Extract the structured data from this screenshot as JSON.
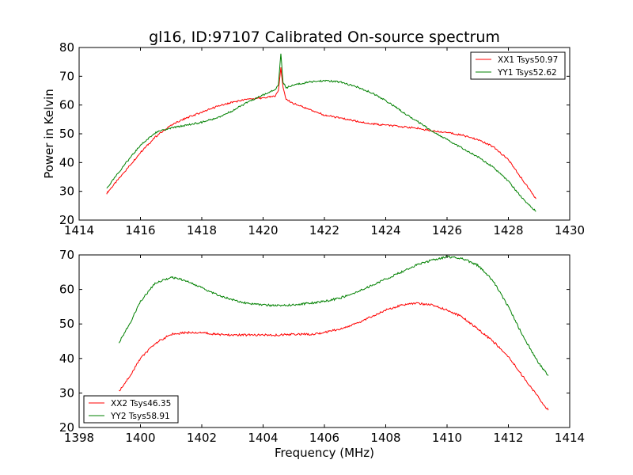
{
  "chart_data": [
    {
      "type": "line",
      "title": "gl16, ID:97107 Calibrated On-source spectrum",
      "xlabel": "",
      "ylabel": "Power in Kelvin",
      "xlim": [
        1414,
        1430
      ],
      "ylim": [
        20,
        80
      ],
      "xticks": [
        "1414",
        "1416",
        "1418",
        "1420",
        "1422",
        "1424",
        "1426",
        "1428",
        "1430"
      ],
      "yticks": [
        "20",
        "30",
        "40",
        "50",
        "60",
        "70",
        "80"
      ],
      "legend_position": "upper right",
      "grid": false,
      "series": [
        {
          "name": "XX1 Tsys50.97",
          "color": "#ff0000",
          "x": [
            1414.9,
            1415.5,
            1416.0,
            1416.5,
            1417.0,
            1417.5,
            1418.0,
            1418.5,
            1419.0,
            1419.5,
            1420.0,
            1420.4,
            1420.5,
            1420.58,
            1420.65,
            1420.75,
            1421.0,
            1421.5,
            1422.0,
            1422.5,
            1423.0,
            1423.5,
            1424.0,
            1424.5,
            1425.0,
            1425.5,
            1426.0,
            1426.5,
            1427.0,
            1427.5,
            1428.0,
            1428.5,
            1428.9
          ],
          "y": [
            29.3,
            37.0,
            43.5,
            49.0,
            53.0,
            55.5,
            57.5,
            59.5,
            61.0,
            62.0,
            62.5,
            63.0,
            65.0,
            73.0,
            66.0,
            62.0,
            60.5,
            58.5,
            56.5,
            55.5,
            54.5,
            53.5,
            53.0,
            52.5,
            52.0,
            51.0,
            50.5,
            49.5,
            48.0,
            45.5,
            41.0,
            33.5,
            27.4
          ]
        },
        {
          "name": "YY1 Tsys52.62",
          "color": "#008000",
          "x": [
            1414.9,
            1415.5,
            1416.0,
            1416.5,
            1417.0,
            1417.5,
            1418.0,
            1418.5,
            1419.0,
            1419.5,
            1420.0,
            1420.4,
            1420.5,
            1420.58,
            1420.65,
            1420.75,
            1421.0,
            1421.5,
            1422.0,
            1422.5,
            1423.0,
            1423.5,
            1424.0,
            1424.5,
            1425.0,
            1425.5,
            1426.0,
            1426.5,
            1427.0,
            1427.5,
            1428.0,
            1428.5,
            1428.9
          ],
          "y": [
            31.0,
            39.5,
            46.0,
            50.5,
            52.0,
            53.0,
            54.0,
            55.5,
            58.0,
            61.0,
            63.5,
            65.5,
            67.0,
            78.0,
            68.0,
            66.0,
            67.0,
            68.0,
            68.5,
            68.0,
            66.5,
            64.5,
            61.5,
            58.0,
            54.5,
            51.0,
            48.0,
            45.0,
            42.0,
            38.5,
            33.5,
            27.0,
            23.0
          ]
        }
      ]
    },
    {
      "type": "line",
      "title": "",
      "xlabel": "Frequency (MHz)",
      "ylabel": "",
      "xlim": [
        1398,
        1414
      ],
      "ylim": [
        20,
        70
      ],
      "xticks": [
        "1398",
        "1400",
        "1402",
        "1404",
        "1406",
        "1408",
        "1410",
        "1412",
        "1414"
      ],
      "yticks": [
        "20",
        "30",
        "40",
        "50",
        "60",
        "70"
      ],
      "legend_position": "lower left",
      "grid": false,
      "series": [
        {
          "name": "XX2 Tsys46.35",
          "color": "#ff0000",
          "x": [
            1399.3,
            1399.7,
            1400.0,
            1400.5,
            1401.0,
            1401.5,
            1402.0,
            1402.5,
            1403.0,
            1403.5,
            1404.0,
            1404.5,
            1405.0,
            1405.5,
            1406.0,
            1406.5,
            1407.0,
            1407.5,
            1408.0,
            1408.5,
            1409.0,
            1409.5,
            1410.0,
            1410.5,
            1411.0,
            1411.5,
            1412.0,
            1412.5,
            1413.0,
            1413.3
          ],
          "y": [
            30.5,
            35.5,
            40.0,
            44.5,
            47.0,
            47.5,
            47.5,
            47.0,
            46.8,
            46.8,
            46.8,
            46.8,
            47.0,
            47.0,
            47.5,
            48.5,
            50.0,
            52.0,
            54.0,
            55.5,
            56.0,
            55.5,
            54.0,
            52.0,
            48.5,
            45.0,
            40.5,
            34.5,
            28.5,
            25.0
          ]
        },
        {
          "name": "YY2 Tsys58.91",
          "color": "#008000",
          "x": [
            1399.3,
            1399.7,
            1400.0,
            1400.5,
            1401.0,
            1401.5,
            1402.0,
            1402.5,
            1403.0,
            1403.5,
            1404.0,
            1404.5,
            1405.0,
            1405.5,
            1406.0,
            1406.5,
            1407.0,
            1407.5,
            1408.0,
            1408.5,
            1409.0,
            1409.5,
            1410.0,
            1410.5,
            1411.0,
            1411.5,
            1412.0,
            1412.5,
            1413.0,
            1413.3
          ],
          "y": [
            44.5,
            51.0,
            56.5,
            62.0,
            63.5,
            62.5,
            60.5,
            58.5,
            57.0,
            56.0,
            55.5,
            55.3,
            55.5,
            56.0,
            56.5,
            57.5,
            59.0,
            61.0,
            63.0,
            65.0,
            67.0,
            68.5,
            69.5,
            69.0,
            67.0,
            62.5,
            55.0,
            46.0,
            38.5,
            35.0
          ]
        }
      ]
    }
  ]
}
